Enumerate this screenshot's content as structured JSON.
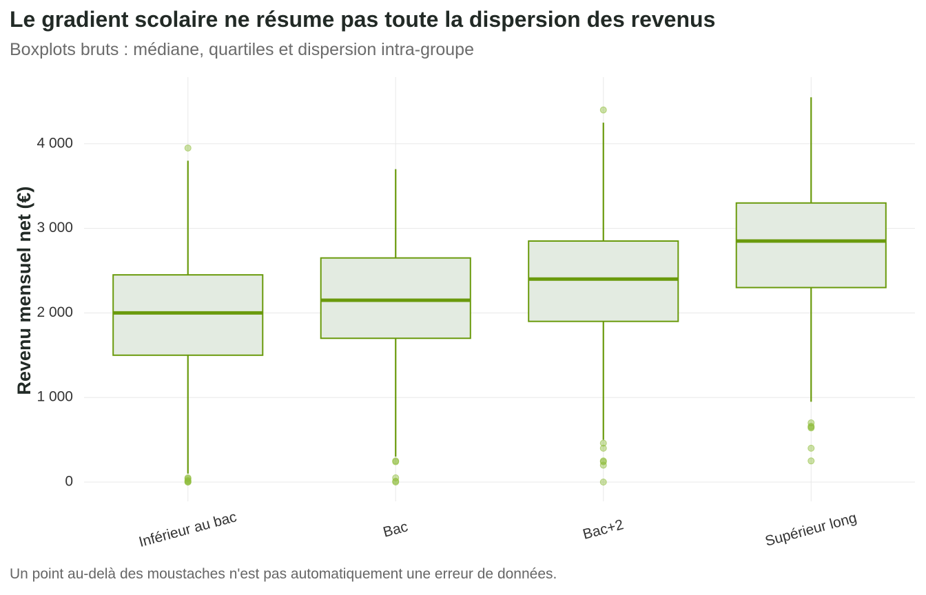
{
  "chart_data": {
    "type": "boxplot",
    "title": "Le gradient scolaire ne résume pas toute la dispersion des revenus",
    "subtitle": "Boxplots bruts : médiane, quartiles et dispersion intra-groupe",
    "caption": "Un point au-delà des moustaches n'est pas automatiquement une erreur de données.",
    "ylabel": "Revenu mensuel net (€)",
    "xlabel": "",
    "ylim": [
      -200,
      4750
    ],
    "yticks": [
      0,
      1000,
      2000,
      3000,
      4000
    ],
    "ytick_labels": [
      "0",
      "1 000",
      "2 000",
      "3 000",
      "4 000"
    ],
    "grid": true,
    "legend": "none",
    "colors": {
      "box_stroke": "#6a9a0c",
      "box_fill": "#e3ebe1",
      "outlier": "#8fbc3b",
      "grid": "#e8e8e8"
    },
    "categories": [
      "Inférieur au bac",
      "Bac",
      "Bac+2",
      "Supérieur long"
    ],
    "boxes": [
      {
        "category": "Inférieur au bac",
        "whisker_low": 100,
        "q1": 1500,
        "median": 2000,
        "q3": 2450,
        "whisker_high": 3800,
        "outliers": [
          3950,
          50,
          40,
          20,
          10,
          0,
          0
        ]
      },
      {
        "category": "Bac",
        "whisker_low": 300,
        "q1": 1700,
        "median": 2150,
        "q3": 2650,
        "whisker_high": 3700,
        "outliers": [
          250,
          240,
          50,
          10,
          0
        ]
      },
      {
        "category": "Bac+2",
        "whisker_low": 500,
        "q1": 1900,
        "median": 2400,
        "q3": 2850,
        "whisker_high": 4250,
        "outliers": [
          4400,
          460,
          400,
          250,
          240,
          200,
          0
        ]
      },
      {
        "category": "Supérieur long",
        "whisker_low": 950,
        "q1": 2300,
        "median": 2850,
        "q3": 3300,
        "whisker_high": 4550,
        "outliers": [
          700,
          660,
          650,
          640,
          400,
          250
        ]
      }
    ]
  }
}
